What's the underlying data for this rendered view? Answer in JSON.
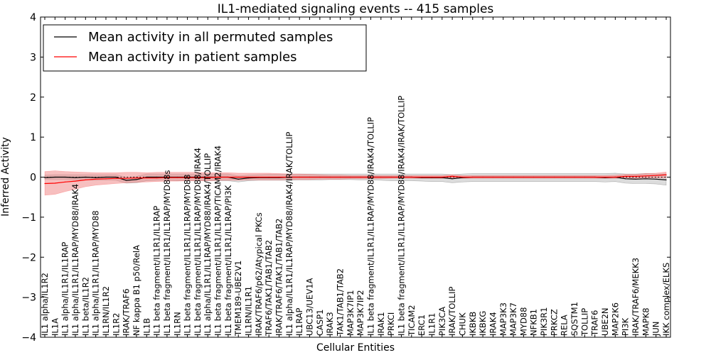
{
  "chart_data": {
    "type": "line",
    "title": "IL1-mediated signaling events -- 415 samples",
    "xlabel": "Cellular Entities",
    "ylabel": "Inferred Activity",
    "ylim": [
      -4,
      4
    ],
    "yticks": [
      -4,
      -3,
      -2,
      -1,
      0,
      1,
      2,
      3,
      4
    ],
    "grid": false,
    "legend_position": "top-left",
    "categories": [
      "IL1 alpha/IL1R2",
      "IL1A",
      "IL1 alpha/IL1R1/IL1RAP",
      "IL1 alpha/IL1R1/IL1RAP/MYD88/IRAK4",
      "IL1 beta/IL1R2",
      "IL1 alpha/IL1R1/IL1RAP/MYD88",
      "IL1RN/IL1R2",
      "IL1R2",
      "IRAK/TRAF6",
      "NF kappa B1 p50/RelA",
      "IL1B",
      "IL1 beta fragment/IL1R1/IL1RAP",
      "IL1 beta fragment/IL1R1/IL1RAP/MYD88s",
      "IL1RN",
      "IL1 beta fragment/IL1R1/IL1RAP/MYD88",
      "IL1 beta fragment/IL1R1/IL1RAP/MYD88/IRAK4",
      "IL1 alpha/IL1R1/IL1RAP/MYD88/IRAK4/TOLLIP",
      "IL1 beta fragment/IL1R1/IL1RAP/TICAM2/IRAK4",
      "IL1 beta fragment/IL1R1/IL1RAP/PI3K",
      "TMEM189-UBE2V1",
      "IL1RN/IL1R1",
      "IRAK/TRAF6/p62/Atypical PKCs",
      "TRAF6/TAK1/TAB1/TAB2",
      "IRAK/TRAF6/TAK1/TAB1/TAB2",
      "IL1 alpha/IL1R1/IL1RAP/MYD88/IRAK4/IRAK/TOLLIP",
      "IL1RAP",
      "UBC13/UEV1A",
      "CASP1",
      "IRAK3",
      "TAK1/TAB1/TAB2",
      "MAP3K7IP1",
      "MAP3K7IP2",
      "IL1 beta fragment/IL1R1/IL1RAP/MYD88/IRAK4/TOLLIP",
      "IRAK1",
      "PRKCI",
      "IL1 beta fragment/IL1R1/IL1RAP/MYD88/IRAK4/IRAK/TOLLIP",
      "TICAM2",
      "ERC1",
      "IL1R1",
      "PIK3CA",
      "IRAK/TOLLIP",
      "CHUK",
      "IKBKB",
      "IKBKG",
      "IRAK4",
      "MAP3K3",
      "MAP3K7",
      "MYD88",
      "NFKB1",
      "PIK3R1",
      "PRKCZ",
      "RELA",
      "SQSTM1",
      "TOLLIP",
      "TRAF6",
      "UBE2N",
      "MAP2K6",
      "PI3K",
      "IRAK/TRAF6/MEKK3",
      "MAPK8",
      "JUN",
      "IKK complex/ELKS"
    ],
    "series": [
      {
        "name": "Mean activity in all permuted samples",
        "color": "#000000",
        "band_color": "#bfbfbf",
        "values": [
          -0.01,
          0.0,
          0.0,
          -0.01,
          0.0,
          -0.01,
          0.0,
          0.0,
          -0.08,
          -0.06,
          0.0,
          0.0,
          0.0,
          0.0,
          0.0,
          0.0,
          0.0,
          0.0,
          0.0,
          -0.05,
          -0.02,
          -0.01,
          -0.01,
          -0.01,
          0.0,
          0.0,
          0.0,
          0.0,
          0.0,
          0.0,
          0.0,
          0.0,
          0.0,
          0.0,
          0.0,
          0.0,
          0.0,
          -0.01,
          -0.01,
          -0.01,
          -0.04,
          -0.01,
          0.0,
          0.0,
          0.0,
          0.0,
          0.0,
          0.0,
          0.0,
          0.0,
          0.0,
          0.0,
          0.0,
          0.0,
          0.0,
          -0.01,
          0.0,
          -0.04,
          -0.05,
          -0.04,
          -0.05,
          -0.07
        ],
        "lower": [
          -0.06,
          -0.06,
          -0.06,
          -0.07,
          -0.07,
          -0.08,
          -0.07,
          -0.08,
          -0.15,
          -0.14,
          -0.09,
          -0.08,
          -0.08,
          -0.09,
          -0.09,
          -0.09,
          -0.09,
          -0.09,
          -0.09,
          -0.12,
          -0.09,
          -0.08,
          -0.08,
          -0.08,
          -0.08,
          -0.07,
          -0.07,
          -0.07,
          -0.06,
          -0.06,
          -0.06,
          -0.07,
          -0.07,
          -0.08,
          -0.09,
          -0.09,
          -0.09,
          -0.1,
          -0.11,
          -0.11,
          -0.14,
          -0.12,
          -0.11,
          -0.11,
          -0.11,
          -0.11,
          -0.11,
          -0.11,
          -0.11,
          -0.11,
          -0.11,
          -0.11,
          -0.11,
          -0.11,
          -0.11,
          -0.12,
          -0.11,
          -0.15,
          -0.16,
          -0.16,
          -0.17,
          -0.2
        ],
        "upper": [
          0.05,
          0.06,
          0.06,
          0.06,
          0.06,
          0.06,
          0.06,
          0.06,
          0.0,
          0.02,
          0.08,
          0.08,
          0.08,
          0.08,
          0.08,
          0.08,
          0.08,
          0.08,
          0.08,
          0.03,
          0.05,
          0.06,
          0.07,
          0.07,
          0.08,
          0.08,
          0.08,
          0.08,
          0.08,
          0.08,
          0.08,
          0.08,
          0.08,
          0.08,
          0.08,
          0.08,
          0.08,
          0.08,
          0.08,
          0.08,
          0.06,
          0.08,
          0.09,
          0.09,
          0.09,
          0.09,
          0.09,
          0.09,
          0.09,
          0.09,
          0.09,
          0.09,
          0.09,
          0.09,
          0.09,
          0.09,
          0.1,
          0.08,
          0.08,
          0.09,
          0.08,
          0.08
        ]
      },
      {
        "name": "Mean activity in patient samples",
        "color": "#ff0000",
        "band_color": "#f08080",
        "values": [
          -0.16,
          -0.15,
          -0.12,
          -0.1,
          -0.07,
          -0.05,
          -0.04,
          -0.03,
          -0.03,
          -0.02,
          -0.02,
          -0.02,
          -0.01,
          -0.01,
          -0.01,
          -0.01,
          -0.01,
          0.0,
          0.0,
          0.0,
          0.0,
          0.0,
          0.0,
          0.0,
          0.0,
          0.0,
          0.0,
          0.0,
          0.0,
          0.0,
          0.0,
          0.0,
          0.0,
          0.0,
          0.0,
          0.0,
          0.0,
          0.0,
          0.0,
          0.0,
          0.02,
          0.0,
          0.0,
          0.0,
          0.0,
          0.0,
          0.0,
          0.0,
          0.0,
          0.0,
          0.0,
          0.0,
          0.0,
          0.0,
          0.0,
          0.0,
          0.0,
          0.02,
          0.02,
          0.03,
          0.04,
          0.06
        ],
        "lower": [
          -0.45,
          -0.43,
          -0.36,
          -0.3,
          -0.24,
          -0.2,
          -0.18,
          -0.16,
          -0.14,
          -0.13,
          -0.12,
          -0.11,
          -0.1,
          -0.1,
          -0.09,
          -0.09,
          -0.09,
          -0.08,
          -0.08,
          -0.08,
          -0.07,
          -0.07,
          -0.07,
          -0.07,
          -0.06,
          -0.06,
          -0.06,
          -0.05,
          -0.05,
          -0.05,
          -0.04,
          -0.04,
          -0.04,
          -0.04,
          -0.03,
          -0.03,
          -0.03,
          -0.03,
          -0.03,
          -0.03,
          -0.02,
          -0.03,
          -0.03,
          -0.03,
          -0.03,
          -0.03,
          -0.03,
          -0.03,
          -0.03,
          -0.03,
          -0.03,
          -0.03,
          -0.03,
          -0.03,
          -0.03,
          -0.03,
          -0.03,
          -0.02,
          -0.03,
          -0.02,
          -0.02,
          -0.02
        ],
        "upper": [
          0.14,
          0.16,
          0.14,
          0.13,
          0.12,
          0.11,
          0.11,
          0.11,
          0.12,
          0.12,
          0.11,
          0.12,
          0.12,
          0.12,
          0.12,
          0.12,
          0.11,
          0.11,
          0.11,
          0.1,
          0.1,
          0.1,
          0.1,
          0.09,
          0.08,
          0.08,
          0.07,
          0.06,
          0.05,
          0.05,
          0.04,
          0.04,
          0.04,
          0.04,
          0.04,
          0.04,
          0.04,
          0.04,
          0.04,
          0.04,
          0.06,
          0.04,
          0.04,
          0.04,
          0.04,
          0.04,
          0.04,
          0.04,
          0.04,
          0.04,
          0.04,
          0.04,
          0.04,
          0.04,
          0.04,
          0.04,
          0.05,
          0.07,
          0.07,
          0.09,
          0.1,
          0.13
        ]
      }
    ],
    "baseline": {
      "value": 0,
      "color": "#000000",
      "style": "dotted"
    },
    "legend": [
      "Mean activity in all permuted samples",
      "Mean activity in patient samples"
    ]
  }
}
